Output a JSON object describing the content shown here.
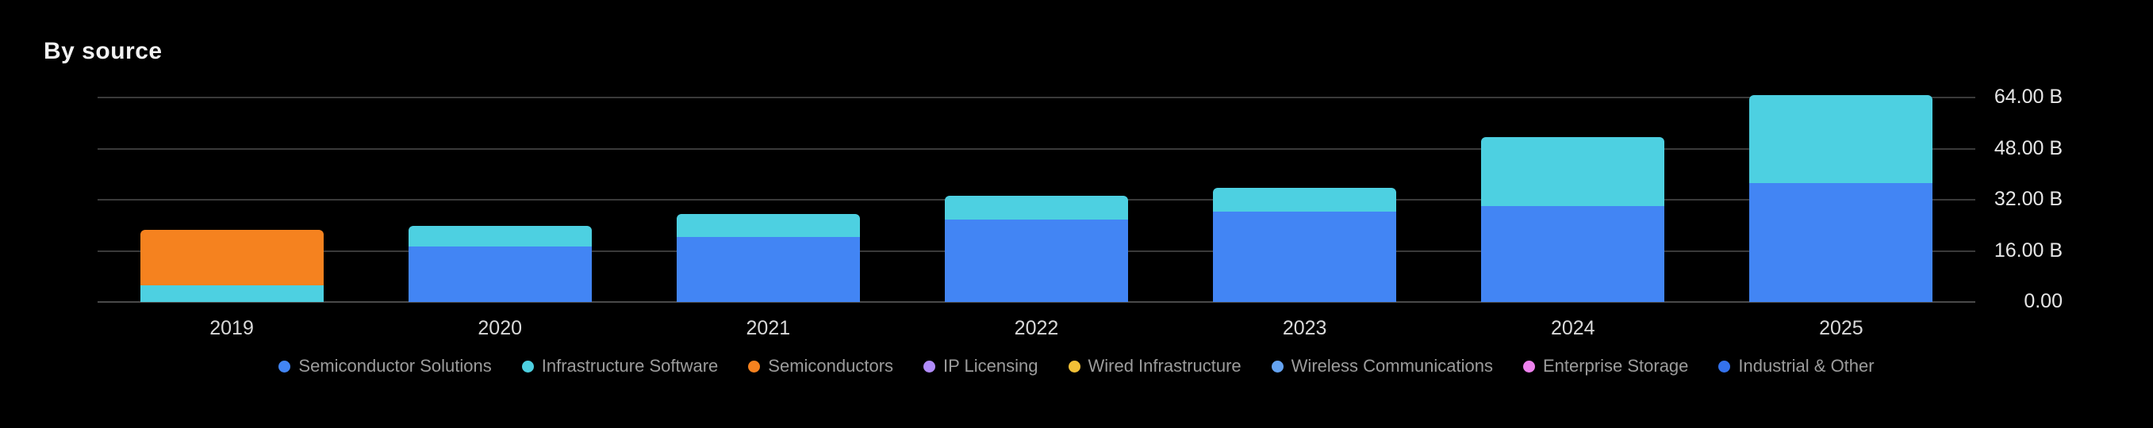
{
  "title": "By source",
  "colors": {
    "background": "#000000",
    "grid": "#3a3a3a",
    "baseline": "#4a4a4a",
    "title_text": "#f2f2f2",
    "axis_tick_text": "#e6e6e6",
    "year_tick_text": "#d9d9d9",
    "legend_text": "#9c9c9c"
  },
  "chart_data": {
    "type": "bar",
    "stacked": true,
    "title": "By source",
    "unit": "B",
    "categories": [
      "2019",
      "2020",
      "2021",
      "2022",
      "2023",
      "2024",
      "2025"
    ],
    "series": [
      {
        "name": "Semiconductor Solutions",
        "color": "#4285f4",
        "values": [
          0,
          17.3,
          20.4,
          25.8,
          28.2,
          30.1,
          37.2
        ]
      },
      {
        "name": "Infrastructure Software",
        "color": "#4dd0e1",
        "values": [
          5.2,
          6.6,
          7.1,
          7.4,
          7.6,
          21.5,
          27.5
        ]
      },
      {
        "name": "Semiconductors",
        "color": "#f5821f",
        "values": [
          17.4,
          0,
          0,
          0,
          0,
          0,
          0
        ]
      },
      {
        "name": "IP Licensing",
        "color": "#b18cfb",
        "values": [
          0,
          0,
          0,
          0,
          0,
          0,
          0
        ]
      },
      {
        "name": "Wired Infrastructure",
        "color": "#f2c037",
        "values": [
          0,
          0,
          0,
          0,
          0,
          0,
          0
        ]
      },
      {
        "name": "Wireless Communications",
        "color": "#64a3f2",
        "values": [
          0,
          0,
          0,
          0,
          0,
          0,
          0
        ]
      },
      {
        "name": "Enterprise Storage",
        "color": "#ee82ee",
        "values": [
          0,
          0,
          0,
          0,
          0,
          0,
          0
        ]
      },
      {
        "name": "Industrial & Other",
        "color": "#3472ec",
        "values": [
          0,
          0,
          0,
          0,
          0,
          0,
          0
        ]
      }
    ],
    "y_axis": {
      "side": "right",
      "min": 0,
      "max": 64,
      "tick_values": [
        64,
        48,
        32,
        16,
        0
      ],
      "tick_labels": [
        "64.00 B",
        "48.00 B",
        "32.00 B",
        "16.00 B",
        "0.00"
      ]
    },
    "grid": true,
    "legend_position": "bottom"
  }
}
